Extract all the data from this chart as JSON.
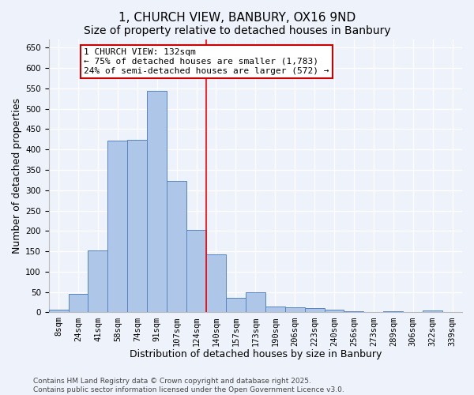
{
  "title": "1, CHURCH VIEW, BANBURY, OX16 9ND",
  "subtitle": "Size of property relative to detached houses in Banbury",
  "xlabel": "Distribution of detached houses by size in Banbury",
  "ylabel": "Number of detached properties",
  "categories": [
    "8sqm",
    "24sqm",
    "41sqm",
    "58sqm",
    "74sqm",
    "91sqm",
    "107sqm",
    "124sqm",
    "140sqm",
    "157sqm",
    "173sqm",
    "190sqm",
    "206sqm",
    "223sqm",
    "240sqm",
    "256sqm",
    "273sqm",
    "289sqm",
    "306sqm",
    "322sqm",
    "339sqm"
  ],
  "values": [
    7,
    45,
    153,
    421,
    424,
    543,
    323,
    203,
    143,
    35,
    49,
    15,
    13,
    10,
    7,
    3,
    0,
    2,
    0,
    5,
    0
  ],
  "bar_color": "#aec6e8",
  "bar_edgecolor": "#5585c0",
  "bg_color": "#eef2fb",
  "vline_x_index": 7.5,
  "vline_label": "1 CHURCH VIEW: 132sqm",
  "annotation_line1": "← 75% of detached houses are smaller (1,783)",
  "annotation_line2": "24% of semi-detached houses are larger (572) →",
  "annotation_box_color": "#ffffff",
  "annotation_box_edgecolor": "#cc0000",
  "ylim": [
    0,
    670
  ],
  "yticks": [
    0,
    50,
    100,
    150,
    200,
    250,
    300,
    350,
    400,
    450,
    500,
    550,
    600,
    650
  ],
  "footnote": "Contains HM Land Registry data © Crown copyright and database right 2025.\nContains public sector information licensed under the Open Government Licence v3.0.",
  "title_fontsize": 11,
  "xlabel_fontsize": 9,
  "ylabel_fontsize": 9,
  "tick_fontsize": 7.5,
  "annot_fontsize": 8,
  "footnote_fontsize": 6.5
}
